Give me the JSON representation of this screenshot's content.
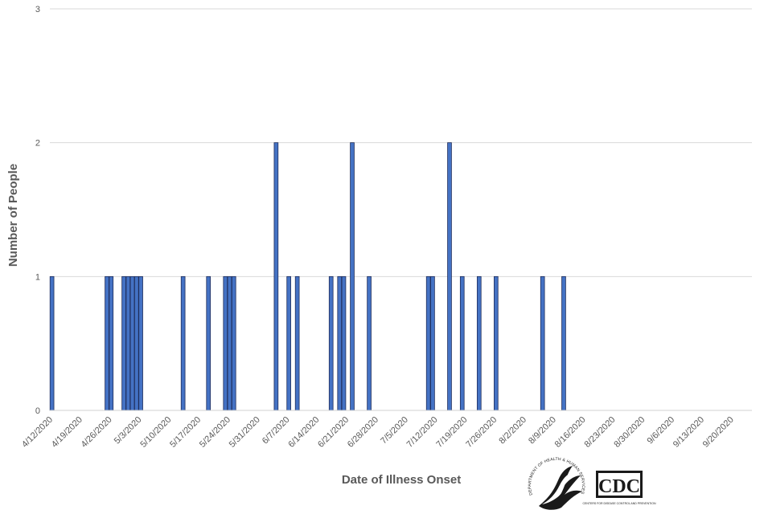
{
  "chart_data": {
    "type": "bar",
    "xlabel": "Date of Illness Onset",
    "ylabel": "Number of People",
    "ylim": [
      0,
      3
    ],
    "y_ticks": [
      0,
      1,
      2,
      3
    ],
    "x_tick_labels": [
      "4/12/2020",
      "4/19/2020",
      "4/26/2020",
      "5/3/2020",
      "5/10/2020",
      "5/17/2020",
      "5/24/2020",
      "5/31/2020",
      "6/7/2020",
      "6/14/2020",
      "6/21/2020",
      "6/28/2020",
      "7/5/2020",
      "7/12/2020",
      "7/19/2020",
      "7/26/2020",
      "8/2/2020",
      "8/9/2020",
      "8/16/2020",
      "8/23/2020",
      "8/30/2020",
      "9/6/2020",
      "9/13/2020",
      "9/20/2020"
    ],
    "x_range": [
      "4/12/2020",
      "9/25/2020"
    ],
    "bar_color": "#4472C4",
    "bar_edge_color": "#1F2D5A",
    "grid": true,
    "bars": [
      {
        "date": "4/12/2020",
        "value": 1
      },
      {
        "date": "4/25/2020",
        "value": 1
      },
      {
        "date": "4/26/2020",
        "value": 1
      },
      {
        "date": "4/29/2020",
        "value": 1
      },
      {
        "date": "4/30/2020",
        "value": 1
      },
      {
        "date": "5/1/2020",
        "value": 1
      },
      {
        "date": "5/2/2020",
        "value": 1
      },
      {
        "date": "5/3/2020",
        "value": 1
      },
      {
        "date": "5/13/2020",
        "value": 1
      },
      {
        "date": "5/19/2020",
        "value": 1
      },
      {
        "date": "5/23/2020",
        "value": 1
      },
      {
        "date": "5/24/2020",
        "value": 1
      },
      {
        "date": "5/25/2020",
        "value": 1
      },
      {
        "date": "6/4/2020",
        "value": 2
      },
      {
        "date": "6/7/2020",
        "value": 1
      },
      {
        "date": "6/9/2020",
        "value": 1
      },
      {
        "date": "6/17/2020",
        "value": 1
      },
      {
        "date": "6/19/2020",
        "value": 1
      },
      {
        "date": "6/20/2020",
        "value": 1
      },
      {
        "date": "6/22/2020",
        "value": 2
      },
      {
        "date": "6/26/2020",
        "value": 1
      },
      {
        "date": "7/10/2020",
        "value": 1
      },
      {
        "date": "7/11/2020",
        "value": 1
      },
      {
        "date": "7/15/2020",
        "value": 2
      },
      {
        "date": "7/18/2020",
        "value": 1
      },
      {
        "date": "7/22/2020",
        "value": 1
      },
      {
        "date": "7/26/2020",
        "value": 1
      },
      {
        "date": "8/6/2020",
        "value": 1
      },
      {
        "date": "8/11/2020",
        "value": 1
      }
    ]
  },
  "logos": {
    "hhs_text": "DEPARTMENT OF HEALTH & HUMAN SERVICES USA",
    "cdc_text": "CDC",
    "cdc_subtext": "CENTERS FOR DISEASE CONTROL AND PREVENTION"
  }
}
